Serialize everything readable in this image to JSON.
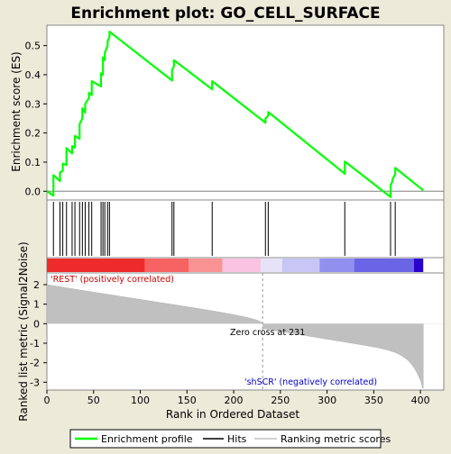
{
  "chart_data": {
    "type": "line",
    "title": "Enrichment plot: GO_CELL_SURFACE",
    "enrichment_panel": {
      "ylabel": "Enrichment score (ES)",
      "ylim": [
        -0.03,
        0.57
      ],
      "yticks": [
        "0.0",
        "0.1",
        "0.2",
        "0.3",
        "0.4",
        "0.5"
      ],
      "ytick_values": [
        0.0,
        0.1,
        0.2,
        0.3,
        0.4,
        0.5
      ],
      "line_color": "#00ff00",
      "series": [
        {
          "name": "Enrichment profile",
          "x": [
            0,
            7,
            7,
            14,
            14,
            17,
            17,
            21,
            21,
            27,
            27,
            30,
            30,
            35,
            35,
            38,
            38,
            41,
            41,
            45,
            45,
            48,
            48,
            58,
            58,
            60,
            60,
            62,
            62,
            65,
            65,
            67,
            67,
            134,
            134,
            136,
            136,
            177,
            177,
            234,
            234,
            237,
            237,
            319,
            319,
            368,
            368,
            370,
            370,
            373,
            373,
            403
          ],
          "y": [
            0.0,
            -0.015,
            0.055,
            0.035,
            0.065,
            0.07,
            0.095,
            0.09,
            0.148,
            0.13,
            0.155,
            0.15,
            0.19,
            0.18,
            0.23,
            0.25,
            0.285,
            0.27,
            0.3,
            0.32,
            0.338,
            0.33,
            0.378,
            0.36,
            0.405,
            0.4,
            0.46,
            0.45,
            0.475,
            0.5,
            0.515,
            0.53,
            0.548,
            0.38,
            0.415,
            0.43,
            0.45,
            0.35,
            0.378,
            0.235,
            0.25,
            0.26,
            0.272,
            0.06,
            0.102,
            -0.02,
            0.02,
            0.035,
            0.04,
            0.06,
            0.08,
            0.003
          ]
        }
      ]
    },
    "hits": [
      7,
      14,
      17,
      21,
      27,
      30,
      35,
      38,
      41,
      45,
      48,
      58,
      60,
      62,
      65,
      67,
      134,
      136,
      177,
      234,
      237,
      319,
      368,
      373
    ],
    "ranking_panel": {
      "ylabel": "Ranked list metric (Signal2Noise)",
      "xlabel": "Rank in Ordered Dataset",
      "ylim": [
        -3.4,
        2.6
      ],
      "yticks": [
        "-3",
        "-2",
        "-1",
        "0",
        "1",
        "2"
      ],
      "ytick_values": [
        -3,
        -2,
        -1,
        0,
        1,
        2
      ],
      "xlim": [
        0,
        425
      ],
      "xticks": [
        "0",
        "50",
        "100",
        "150",
        "200",
        "250",
        "300",
        "350",
        "400"
      ],
      "xtick_values": [
        0,
        50,
        100,
        150,
        200,
        250,
        300,
        350,
        400
      ],
      "n_genes": 403,
      "metric_start": 2.0,
      "metric_end": -3.3,
      "zero_cross_rank": 231,
      "zero_cross_label": "Zero cross at 231",
      "positive_label": "'REST' (positively correlated)",
      "negative_label": "'shSCR' (negatively correlated)",
      "positive_color": "#cc0000",
      "negative_color": "#0000cc"
    },
    "colorbar": {
      "segments": [
        {
          "from": 0,
          "to": 105,
          "color": "#ee2b2b"
        },
        {
          "from": 105,
          "to": 152,
          "color": "#f76262"
        },
        {
          "from": 152,
          "to": 188,
          "color": "#f99393"
        },
        {
          "from": 188,
          "to": 229,
          "color": "#fac3e2"
        },
        {
          "from": 229,
          "to": 252,
          "color": "#e6e2f8"
        },
        {
          "from": 252,
          "to": 292,
          "color": "#c7c6f4"
        },
        {
          "from": 292,
          "to": 329,
          "color": "#9290ee"
        },
        {
          "from": 329,
          "to": 393,
          "color": "#6a64e6"
        },
        {
          "from": 393,
          "to": 403,
          "color": "#2a00cc"
        }
      ]
    },
    "legend": {
      "placement": "bottom",
      "items": [
        {
          "label": "Enrichment profile",
          "color": "#00ff00"
        },
        {
          "label": "Hits",
          "color": "#000000"
        },
        {
          "label": "Ranking metric scores",
          "color": "#c0c0c0"
        }
      ]
    }
  }
}
